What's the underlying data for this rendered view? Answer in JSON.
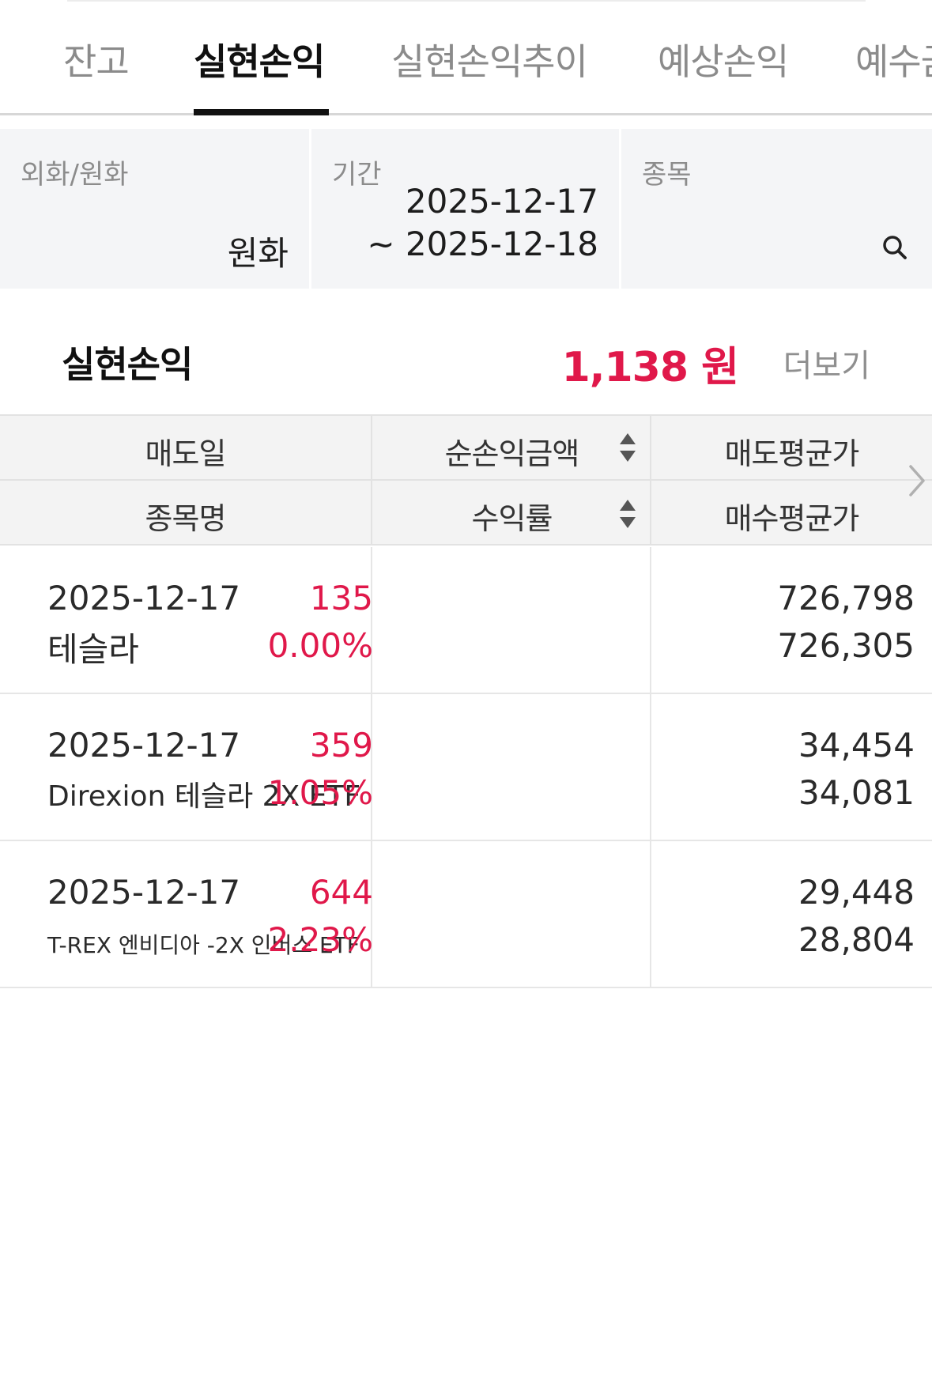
{
  "tabs": [
    {
      "label": "잔고"
    },
    {
      "label": "실현손익",
      "active": true
    },
    {
      "label": "실현손익추이"
    },
    {
      "label": "예상손익"
    },
    {
      "label": "예수금"
    }
  ],
  "filters": {
    "currency": {
      "label": "외화/원화",
      "value": "원화"
    },
    "period": {
      "label": "기간",
      "start": "2025-12-17",
      "end": "~ 2025-12-18"
    },
    "stock": {
      "label": "종목",
      "icon": "search-icon"
    }
  },
  "summary": {
    "title": "실현손익",
    "amount": "1,138 원",
    "more": "더보기"
  },
  "table": {
    "headers": {
      "sell_date": "매도일",
      "net_pnl": "순손익금액",
      "sell_avg": "매도평균가",
      "stock_name": "종목명",
      "return_rate": "수익률",
      "buy_avg": "매수평균가"
    },
    "rows": [
      {
        "date": "2025-12-17",
        "name": "테슬라",
        "pnl": "135",
        "rate": "0.00%",
        "sell_avg": "726,798",
        "buy_avg": "726,305"
      },
      {
        "date": "2025-12-17",
        "name": "Direxion 테슬라 2X ETF",
        "pnl": "359",
        "rate": "1.05%",
        "sell_avg": "34,454",
        "buy_avg": "34,081"
      },
      {
        "date": "2025-12-17",
        "name": "T-REX 엔비디아 -2X 인버스 ETF",
        "pnl": "644",
        "rate": "2.23%",
        "sell_avg": "29,448",
        "buy_avg": "28,804"
      }
    ]
  },
  "colors": {
    "accent_red": "#e0184a",
    "active_tab": "#111111",
    "inactive_tab": "#8b8b8b",
    "filter_bg": "#f4f5f7",
    "header_bg": "#f3f3f3"
  }
}
